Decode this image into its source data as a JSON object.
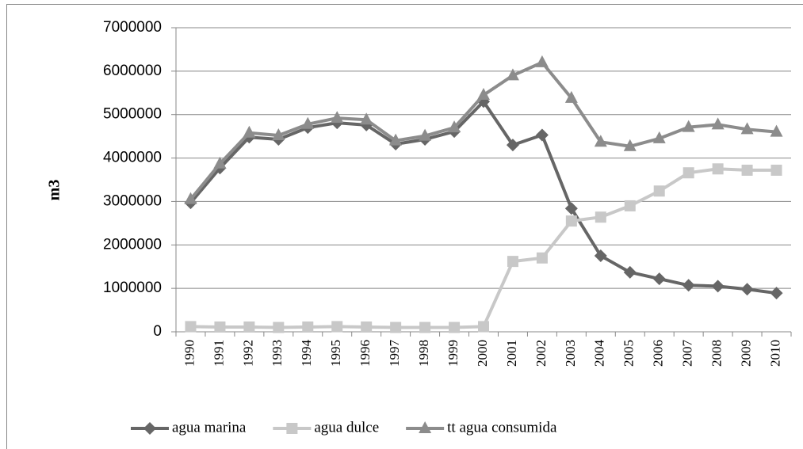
{
  "chart_data": {
    "type": "line",
    "y_label": "m3",
    "categories": [
      "1990",
      "1991",
      "1992",
      "1993",
      "1994",
      "1995",
      "1996",
      "1997",
      "1998",
      "1999",
      "2000",
      "2001",
      "2002",
      "2003",
      "2004",
      "2005",
      "2006",
      "2007",
      "2008",
      "2009",
      "2010"
    ],
    "series": [
      {
        "name": "agua marina",
        "color": "#666666",
        "marker": "diamond",
        "values": [
          2970000,
          3770000,
          4480000,
          4430000,
          4700000,
          4810000,
          4760000,
          4320000,
          4430000,
          4610000,
          5300000,
          4300000,
          4530000,
          2840000,
          1750000,
          1370000,
          1220000,
          1070000,
          1050000,
          980000,
          890000
        ]
      },
      {
        "name": "agua dulce",
        "color": "#c8c8c8",
        "marker": "square",
        "values": [
          120000,
          110000,
          110000,
          100000,
          110000,
          120000,
          110000,
          100000,
          100000,
          100000,
          120000,
          1620000,
          1700000,
          2550000,
          2640000,
          2900000,
          3240000,
          3660000,
          3750000,
          3720000,
          3720000
        ]
      },
      {
        "name": "tt agua consumida",
        "color": "#8c8c8c",
        "marker": "triangle",
        "values": [
          3050000,
          3870000,
          4580000,
          4520000,
          4780000,
          4920000,
          4880000,
          4400000,
          4510000,
          4700000,
          5450000,
          5900000,
          6200000,
          5380000,
          4370000,
          4270000,
          4450000,
          4710000,
          4770000,
          4660000,
          4600000
        ]
      }
    ],
    "ylim": [
      0,
      7000000
    ],
    "yticks": [
      0,
      1000000,
      2000000,
      3000000,
      4000000,
      5000000,
      6000000,
      7000000
    ],
    "grid": true,
    "legend": "bottom"
  }
}
